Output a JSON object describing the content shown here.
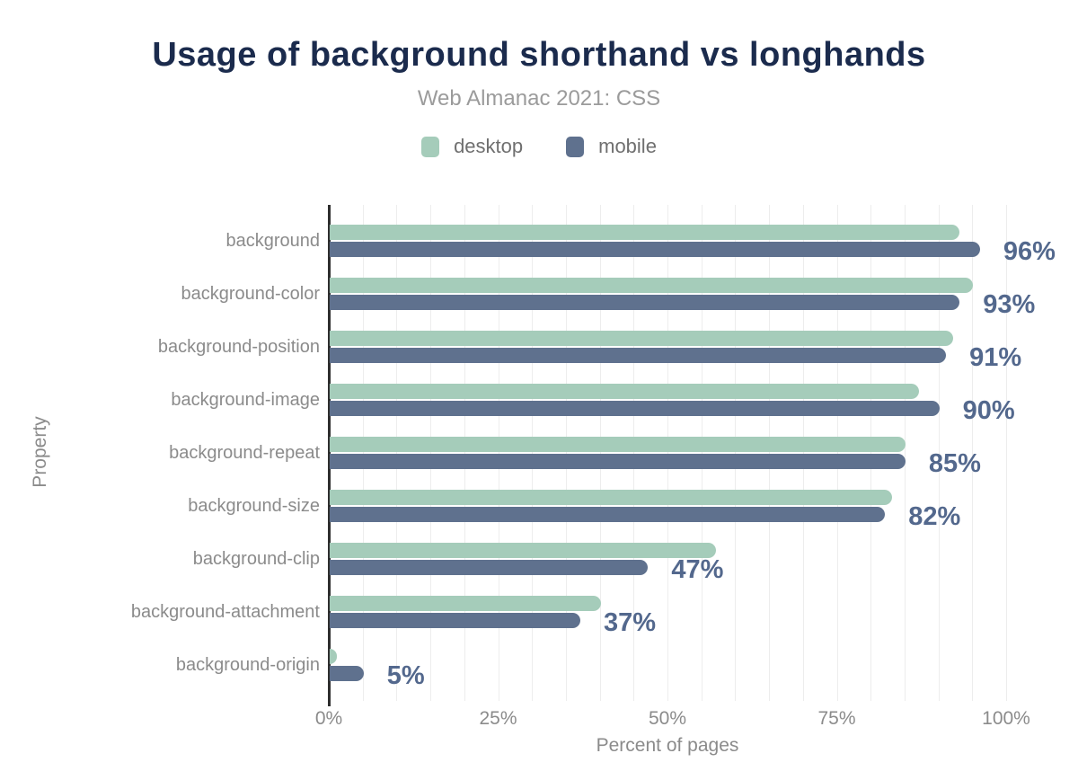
{
  "header": {
    "title": "Usage of background shorthand vs longhands",
    "subtitle": "Web Almanac 2021: CSS"
  },
  "legend": [
    {
      "label": "desktop",
      "color": "#a5ccba"
    },
    {
      "label": "mobile",
      "color": "#5f718e"
    }
  ],
  "chart_data": {
    "type": "bar",
    "orientation": "horizontal",
    "title": "Usage of background shorthand vs longhands",
    "subtitle": "Web Almanac 2021: CSS",
    "xlabel": "Percent of pages",
    "ylabel": "Property",
    "xlim": [
      0,
      100
    ],
    "x_ticks": [
      0,
      25,
      50,
      75,
      100
    ],
    "x_tick_labels": [
      "0%",
      "25%",
      "50%",
      "75%",
      "100%"
    ],
    "grid": "vertical minor gridlines every 5%",
    "legend_position": "top",
    "categories": [
      "background",
      "background-color",
      "background-position",
      "background-image",
      "background-repeat",
      "background-size",
      "background-clip",
      "background-attachment",
      "background-origin"
    ],
    "series": [
      {
        "name": "desktop",
        "color": "#a5ccba",
        "values": [
          93,
          95,
          92,
          87,
          85,
          83,
          57,
          40,
          1
        ]
      },
      {
        "name": "mobile",
        "color": "#5f718e",
        "values": [
          96,
          93,
          91,
          90,
          85,
          82,
          47,
          37,
          5
        ]
      }
    ],
    "value_labels": {
      "series": "mobile",
      "labels": [
        "96%",
        "93%",
        "91%",
        "90%",
        "85%",
        "82%",
        "47%",
        "37%",
        "5%"
      ]
    }
  },
  "colors": {
    "title": "#1b2b4d",
    "subtitle": "#9b9b9b",
    "axis_text": "#8b8b8b",
    "legend_text": "#6f6f6f",
    "value_label": "#53688d",
    "axis_line": "#2e2e2e",
    "gridline": "#ededed",
    "desktop": "#a5ccba",
    "mobile": "#5f718e",
    "background": "#ffffff"
  }
}
